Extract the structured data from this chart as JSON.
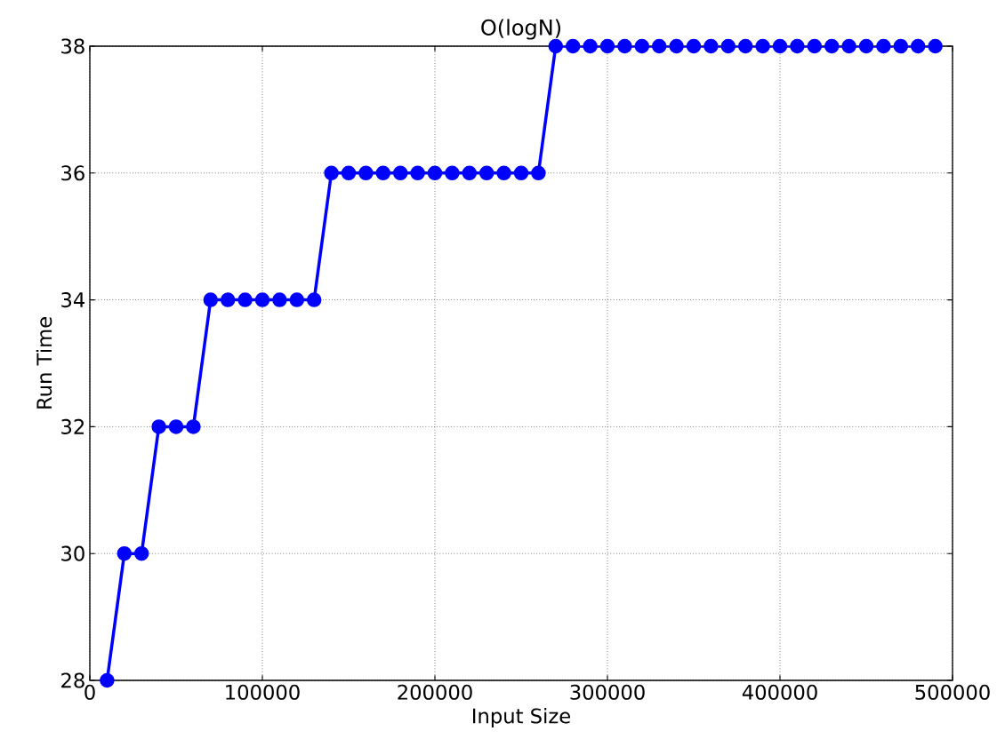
{
  "chart_data": {
    "type": "line",
    "title": "O(logN)",
    "xlabel": "Input Size",
    "ylabel": "Run Time",
    "x": [
      10000,
      20000,
      30000,
      40000,
      50000,
      60000,
      70000,
      80000,
      90000,
      100000,
      110000,
      120000,
      130000,
      140000,
      150000,
      160000,
      170000,
      180000,
      190000,
      200000,
      210000,
      220000,
      230000,
      240000,
      250000,
      260000,
      270000,
      280000,
      290000,
      300000,
      310000,
      320000,
      330000,
      340000,
      350000,
      360000,
      370000,
      380000,
      390000,
      400000,
      410000,
      420000,
      430000,
      440000,
      450000,
      460000,
      470000,
      480000,
      490000
    ],
    "series": [
      {
        "color": "#0000ff",
        "values": [
          28,
          30,
          30,
          32,
          32,
          32,
          34,
          34,
          34,
          34,
          34,
          34,
          34,
          36,
          36,
          36,
          36,
          36,
          36,
          36,
          36,
          36,
          36,
          36,
          36,
          36,
          38,
          38,
          38,
          38,
          38,
          38,
          38,
          38,
          38,
          38,
          38,
          38,
          38,
          38,
          38,
          38,
          38,
          38,
          38,
          38,
          38,
          38,
          38
        ]
      }
    ],
    "xlim": [
      0,
      500000
    ],
    "ylim": [
      28,
      38
    ],
    "xticks": [
      0,
      100000,
      200000,
      300000,
      400000,
      500000
    ],
    "yticks": [
      28,
      30,
      32,
      34,
      36,
      38
    ],
    "grid": true,
    "marker": "circle",
    "line_style": "solid"
  }
}
